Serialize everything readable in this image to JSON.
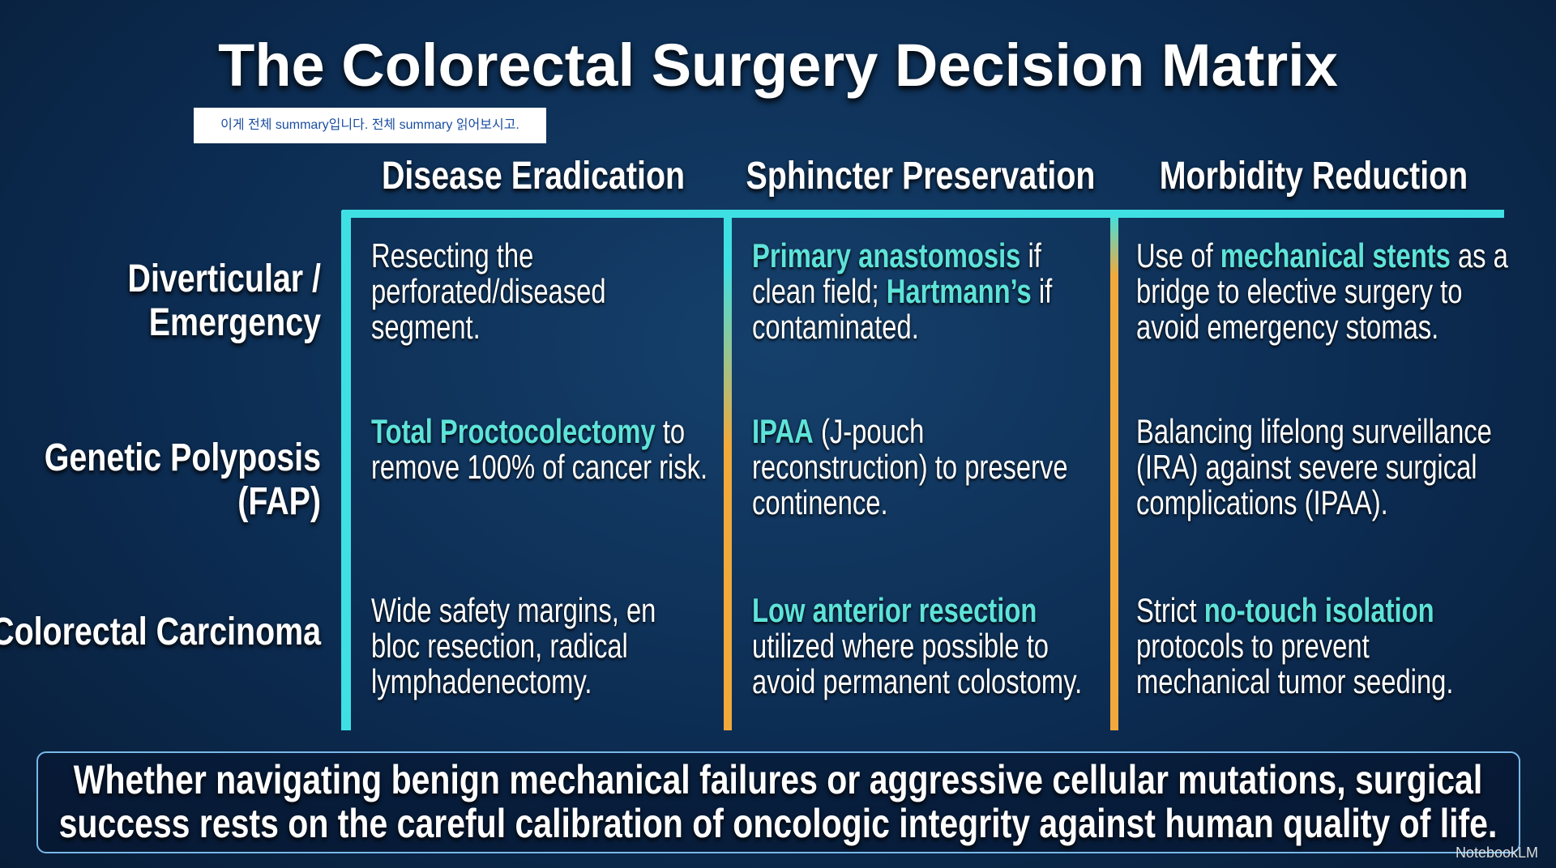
{
  "title": "The Colorectal Surgery Decision Matrix",
  "note": "이게 전체 summary입니다. 전체 summary 읽어보시고.",
  "columns": [
    "Disease Eradication",
    "Sphincter Preservation",
    "Morbidity Reduction"
  ],
  "rows": [
    {
      "label": "Diverticular / Emergency",
      "cells": [
        [
          {
            "text": "Resecting the perforated/diseased segment.",
            "style": "plain"
          }
        ],
        [
          {
            "text": "Primary anastomosis",
            "style": "highlight"
          },
          {
            "text": " if clean field; ",
            "style": "plain"
          },
          {
            "text": "Hartmann’s",
            "style": "highlight"
          },
          {
            "text": " if contaminated.",
            "style": "plain"
          }
        ],
        [
          {
            "text": "Use of ",
            "style": "plain"
          },
          {
            "text": "mechanical stents",
            "style": "highlight"
          },
          {
            "text": " as a bridge to elective surgery to avoid emergency stomas.",
            "style": "plain"
          }
        ]
      ]
    },
    {
      "label": "Genetic Polyposis (FAP)",
      "cells": [
        [
          {
            "text": "Total Proctocolectomy",
            "style": "highlight"
          },
          {
            "text": " to remove 100% of cancer risk.",
            "style": "plain"
          }
        ],
        [
          {
            "text": "IPAA",
            "style": "highlight"
          },
          {
            "text": " (J-pouch reconstruction) to preserve continence.",
            "style": "plain"
          }
        ],
        [
          {
            "text": "Balancing lifelong surveillance (IRA) against severe surgical complications (IPAA).",
            "style": "plain"
          }
        ]
      ]
    },
    {
      "label": "Colorectal Carcinoma",
      "cells": [
        [
          {
            "text": "Wide safety margins, en bloc resection, radical lymphadenectomy.",
            "style": "plain"
          }
        ],
        [
          {
            "text": "Low anterior resection",
            "style": "highlight"
          },
          {
            "text": " utilized where possible to avoid permanent colostomy.",
            "style": "plain"
          }
        ],
        [
          {
            "text": "Strict ",
            "style": "plain"
          },
          {
            "text": "no-touch isolation",
            "style": "highlight"
          },
          {
            "text": " protocols to prevent mechanical tumor seeding.",
            "style": "plain"
          }
        ]
      ]
    }
  ],
  "footer": "Whether navigating benign mechanical failures or aggressive cellular mutations, surgical success rests on the careful calibration of oncologic integrity against human quality of life.",
  "brand": "NotebookLM"
}
